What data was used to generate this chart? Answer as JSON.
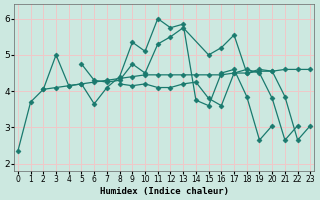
{
  "background_color": "#cce8e0",
  "grid_color_major": "#f0c8c8",
  "line_color": "#1a7a6e",
  "marker_style": "D",
  "marker_size": 2.5,
  "xlabel": "Humidex (Indice chaleur)",
  "ylim": [
    1.8,
    6.4
  ],
  "xlim": [
    -0.3,
    23.3
  ],
  "yticks": [
    2,
    3,
    4,
    5,
    6
  ],
  "xticks": [
    0,
    1,
    2,
    3,
    4,
    5,
    6,
    7,
    8,
    9,
    10,
    11,
    12,
    13,
    14,
    15,
    16,
    17,
    18,
    19,
    20,
    21,
    22,
    23
  ],
  "lines": [
    {
      "x": [
        0,
        1,
        2,
        3,
        4,
        5,
        6,
        7,
        8,
        9,
        10,
        11,
        12,
        13,
        14,
        15,
        16,
        17,
        18,
        19,
        20
      ],
      "y": [
        2.35,
        3.7,
        4.05,
        5.0,
        4.15,
        4.2,
        3.65,
        4.1,
        4.4,
        5.35,
        5.1,
        6.0,
        5.75,
        5.85,
        3.75,
        3.6,
        4.5,
        4.6,
        3.85,
        2.65,
        3.05
      ]
    },
    {
      "x": [
        2,
        3,
        4,
        5,
        6,
        7,
        8,
        9,
        10,
        11,
        12,
        13,
        14,
        15,
        16,
        17,
        18,
        19,
        20,
        21,
        22,
        23
      ],
      "y": [
        4.05,
        4.1,
        4.15,
        4.2,
        4.25,
        4.3,
        4.35,
        4.4,
        4.45,
        4.45,
        4.45,
        4.45,
        4.45,
        4.45,
        4.45,
        4.5,
        4.5,
        4.55,
        4.55,
        4.6,
        4.6,
        4.6
      ]
    },
    {
      "x": [
        5,
        6,
        7,
        8,
        9,
        10,
        11,
        12,
        13,
        15,
        16,
        17,
        18,
        19,
        20,
        21,
        22,
        23
      ],
      "y": [
        4.75,
        4.3,
        4.25,
        4.3,
        4.75,
        4.5,
        5.3,
        5.5,
        5.75,
        5.0,
        5.2,
        5.55,
        4.5,
        4.6,
        4.55,
        3.85,
        2.65,
        3.05
      ]
    },
    {
      "x": [
        8,
        9,
        10,
        11,
        12,
        13,
        14,
        15,
        16,
        17,
        18,
        19,
        20,
        21,
        22,
        23
      ],
      "y": [
        4.2,
        4.15,
        4.2,
        4.1,
        4.1,
        4.2,
        4.25,
        3.8,
        3.6,
        4.5,
        4.6,
        4.5,
        3.8,
        2.65,
        3.05,
        null
      ]
    }
  ]
}
